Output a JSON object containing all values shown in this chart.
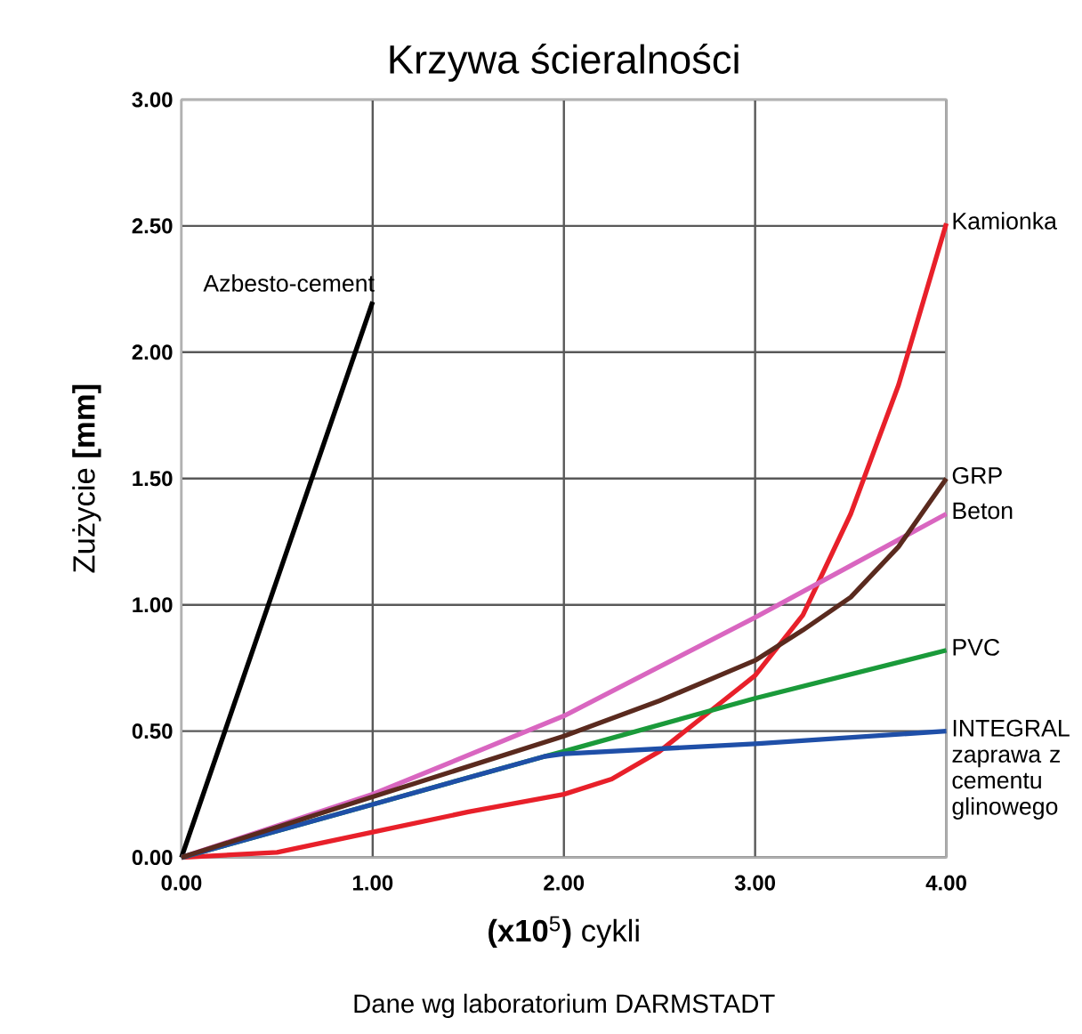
{
  "chart_data": {
    "type": "line",
    "title": "Krzywa ścieralności",
    "xlabel": "**(x10**$^{5}$**)** cykli",
    "ylabel": "Zużycie   **[mm]**",
    "annotations": [
      "Dane wg laboratorium DARMSTADT"
    ],
    "xlim": [
      0,
      4
    ],
    "ylim": [
      0,
      3
    ],
    "xticks": [
      {
        "value": 0,
        "label": "0.00"
      },
      {
        "value": 1,
        "label": "1.00"
      },
      {
        "value": 2,
        "label": "2.00"
      },
      {
        "value": 3,
        "label": "3.00"
      },
      {
        "value": 4,
        "label": "4.00"
      }
    ],
    "yticks": [
      {
        "value": 0,
        "label": "0.00"
      },
      {
        "value": 0.5,
        "label": "0.50"
      },
      {
        "value": 1,
        "label": "1.00"
      },
      {
        "value": 1.5,
        "label": "1.50"
      },
      {
        "value": 2,
        "label": "2.00"
      },
      {
        "value": 2.5,
        "label": "2.50"
      },
      {
        "value": 3,
        "label": "3.00"
      }
    ],
    "grid": true,
    "marker": "none",
    "line_style": "solid",
    "series": [
      {
        "name": "Azbesto-cement",
        "color": "#000000",
        "x": [
          0,
          1
        ],
        "values": [
          0,
          2.2
        ]
      },
      {
        "name": "Kamionka",
        "color": "#e8202a",
        "x": [
          0,
          0.5,
          1,
          1.5,
          2,
          2.25,
          2.5,
          2.75,
          3,
          3.25,
          3.5,
          3.75,
          4
        ],
        "values": [
          0,
          0.02,
          0.1,
          0.18,
          0.25,
          0.31,
          0.42,
          0.57,
          0.72,
          0.96,
          1.36,
          1.87,
          2.51
        ]
      },
      {
        "name": "Beton",
        "color": "#d966c0",
        "x": [
          0,
          1,
          2,
          3,
          4
        ],
        "values": [
          0,
          0.25,
          0.56,
          0.95,
          1.36
        ]
      },
      {
        "name": "PVC",
        "color": "#1a9a3a",
        "x": [
          0,
          1,
          1.9,
          2,
          3,
          4
        ],
        "values": [
          0,
          0.21,
          0.4,
          0.42,
          0.63,
          0.82
        ]
      },
      {
        "name": "INTEGRAL zaprawa z cementu glinowego",
        "color": "#1f4fa8",
        "x": [
          0,
          1,
          1.9,
          2,
          3,
          4
        ],
        "values": [
          0,
          0.21,
          0.4,
          0.41,
          0.45,
          0.5
        ]
      },
      {
        "name": "GRP",
        "color": "#5a2a1e",
        "x": [
          0,
          1,
          2,
          2.5,
          3,
          3.25,
          3.5,
          3.75,
          4
        ],
        "values": [
          0,
          0.24,
          0.48,
          0.62,
          0.78,
          0.9,
          1.03,
          1.23,
          1.5
        ]
      }
    ]
  }
}
